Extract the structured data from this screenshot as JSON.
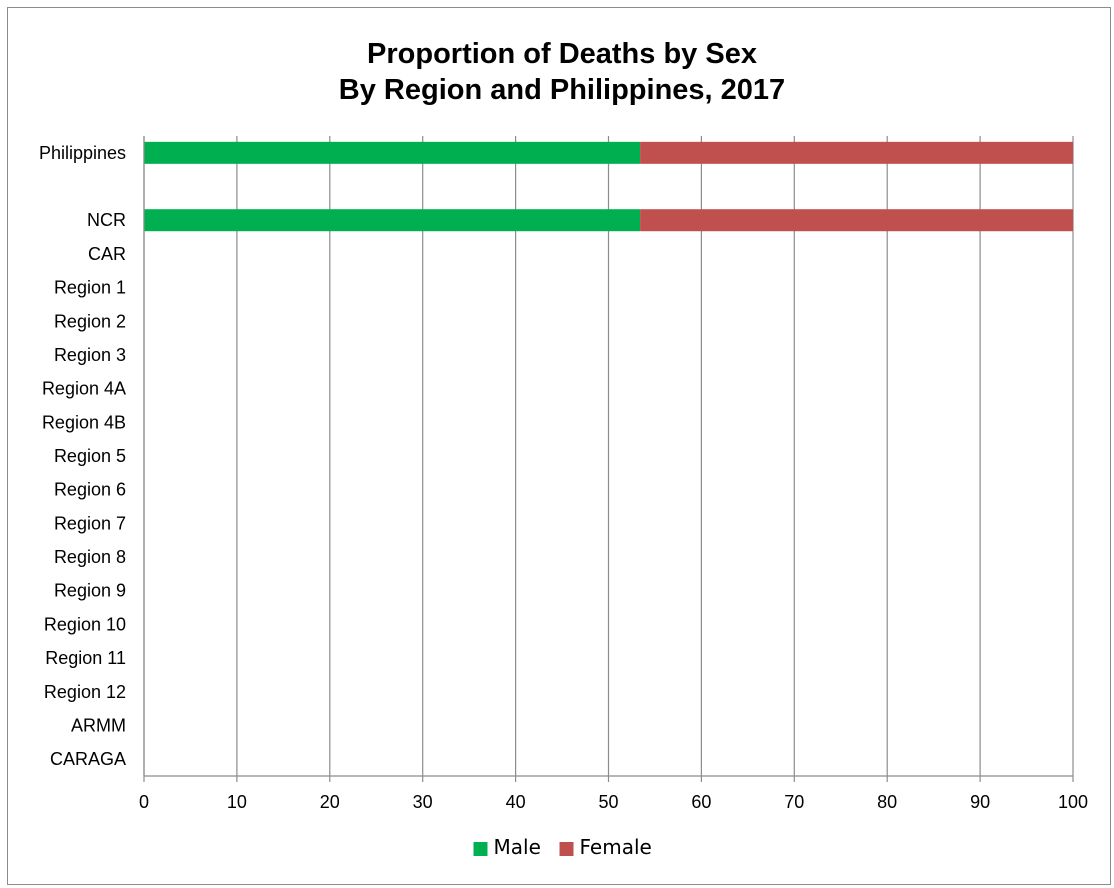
{
  "chart_data": {
    "type": "bar",
    "orientation": "horizontal",
    "stacked": true,
    "title": [
      "Proportion of Deaths by Sex",
      "By Region and Philippines, 2017"
    ],
    "categories": [
      "Philippines",
      "",
      "NCR",
      "CAR",
      "Region 1",
      "Region 2",
      "Region 3",
      "Region 4A",
      "Region 4B",
      "Region 5",
      "Region 6",
      "Region 7",
      "Region 8",
      "Region 9",
      "Region 10",
      "Region 11",
      "Region 12",
      "ARMM",
      "CARAGA"
    ],
    "series": [
      {
        "name": "Male",
        "color": "#00b050",
        "values": [
          53.4,
          null,
          53.4,
          null,
          null,
          null,
          null,
          null,
          null,
          null,
          null,
          null,
          null,
          null,
          null,
          null,
          null,
          null,
          null
        ]
      },
      {
        "name": "Female",
        "color": "#c0504d",
        "values": [
          46.6,
          null,
          46.6,
          null,
          null,
          null,
          null,
          null,
          null,
          null,
          null,
          null,
          null,
          null,
          null,
          null,
          null,
          null,
          null
        ]
      }
    ],
    "xlim": [
      0,
      100
    ],
    "xticks": [
      "0",
      "10",
      "20",
      "30",
      "40",
      "50",
      "60",
      "70",
      "80",
      "90",
      "100"
    ],
    "grid": true,
    "legend_position": "bottom"
  }
}
